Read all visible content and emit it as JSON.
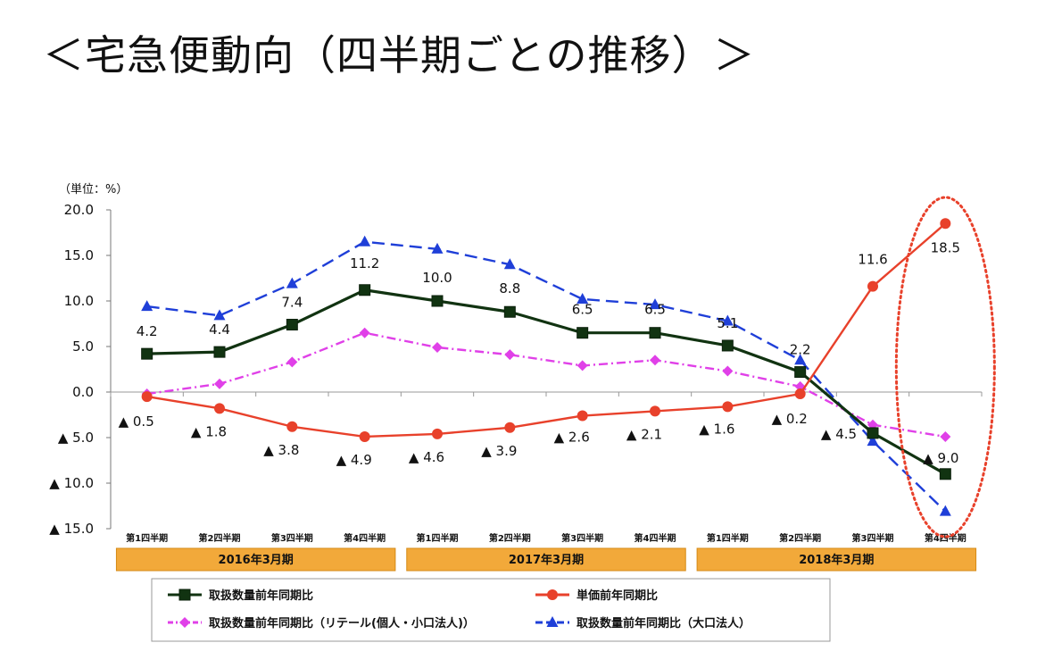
{
  "page_title": "＜宅急便動向（四半期ごとの推移）＞",
  "chart_data": {
    "type": "line",
    "unit_label": "（単位：%）",
    "ylim": [
      -15,
      20
    ],
    "y_ticks": [
      20,
      15,
      10,
      5,
      0,
      -5,
      -10,
      -15
    ],
    "y_tick_labels": [
      "20.0",
      "15.0",
      "10.0",
      "5.0",
      "0.0",
      "▲ 5.0",
      "▲ 10.0",
      "▲ 15.0"
    ],
    "categories": [
      "第1四半期",
      "第2四半期",
      "第3四半期",
      "第4四半期",
      "第1四半期",
      "第2四半期",
      "第3四半期",
      "第4四半期",
      "第1四半期",
      "第2四半期",
      "第3四半期",
      "第4四半期"
    ],
    "periods": [
      {
        "label": "2016年3月期",
        "start": 0,
        "end": 3
      },
      {
        "label": "2017年3月期",
        "start": 4,
        "end": 7
      },
      {
        "label": "2018年3月期",
        "start": 8,
        "end": 11
      }
    ],
    "series": [
      {
        "name": "取扱数量前年同期比（大口法人）",
        "color": "#1f3fd8",
        "dash": "14 7",
        "marker": "triangle",
        "values": [
          9.4,
          8.4,
          11.9,
          16.5,
          15.7,
          14.0,
          10.2,
          9.6,
          7.8,
          3.5,
          -5.4,
          -13.1
        ],
        "labels": null
      },
      {
        "name": "取扱数量前年同期比（リテール(個人・小口法人)）",
        "color": "#e040e8",
        "dash": "10 4 2 4",
        "marker": "diamond",
        "values": [
          -0.2,
          0.9,
          3.3,
          6.5,
          4.9,
          4.1,
          2.9,
          3.5,
          2.3,
          0.6,
          -3.6,
          -4.9
        ],
        "labels": null
      },
      {
        "name": "取扱数量前年同期比",
        "color": "#113311",
        "dash": "",
        "marker": "square",
        "values": [
          4.2,
          4.4,
          7.4,
          11.2,
          10.0,
          8.8,
          6.5,
          6.5,
          5.1,
          2.2,
          -4.5,
          -9.0
        ],
        "labels": [
          "4.2",
          "4.4",
          "7.4",
          "11.2",
          "10.0",
          "8.8",
          "6.5",
          "6.5",
          "5.1",
          "2.2",
          "▲ 4.5",
          "▲ 9.0"
        ]
      },
      {
        "name": "単価前年同期比",
        "color": "#e8412b",
        "dash": "",
        "marker": "circle",
        "values": [
          -0.5,
          -1.8,
          -3.8,
          -4.9,
          -4.6,
          -3.9,
          -2.6,
          -2.1,
          -1.6,
          -0.2,
          11.6,
          18.5
        ],
        "labels": [
          "▲ 0.5",
          "▲ 1.8",
          "▲ 3.8",
          "▲ 4.9",
          "▲ 4.6",
          "▲ 3.9",
          "▲ 2.6",
          "▲ 2.1",
          "▲ 1.6",
          "▲ 0.2",
          "11.6",
          "18.5"
        ]
      }
    ],
    "legend": [
      {
        "label": "取扱数量前年同期比",
        "series": 2
      },
      {
        "label": "単価前年同期比",
        "series": 3
      },
      {
        "label": "取扱数量前年同期比（リテール(個人・小口法人)）",
        "series": 1
      },
      {
        "label": "取扱数量前年同期比（大口法人）",
        "series": 0
      }
    ],
    "highlight": {
      "category_index": 11,
      "style": "red dotted ellipse"
    }
  }
}
